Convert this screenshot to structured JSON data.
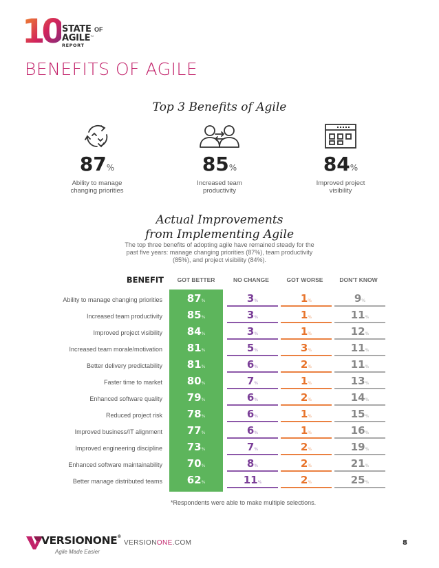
{
  "header": {
    "logo_number": "10",
    "logo_state": "STATE",
    "logo_of": "OF",
    "logo_agile": "AGILE",
    "logo_tm": "™",
    "logo_report": "REPORT",
    "page_title": "BENEFITS OF AGILE"
  },
  "top_benefits": {
    "heading": "Top 3 Benefits of Agile",
    "items": [
      {
        "value": "87",
        "unit": "%",
        "label_line1": "Ability to manage",
        "label_line2": "changing priorities",
        "icon": "cycle-arrows-icon"
      },
      {
        "value": "85",
        "unit": "%",
        "label_line1": "Increased team",
        "label_line2": "productivity",
        "icon": "team-exchange-icon"
      },
      {
        "value": "84",
        "unit": "%",
        "label_line1": "Improved project",
        "label_line2": "visibility",
        "icon": "project-window-icon"
      }
    ]
  },
  "improvements": {
    "heading_line1": "Actual Improvements",
    "heading_line2": "from Implementing Agile",
    "intro_line1": "The top three benefits of adopting agile have remained steady for the",
    "intro_line2": "past five years: manage changing priorities (87%), team productivity",
    "intro_line3": "(85%), and project visibility (84%).",
    "col_benefit": "BENEFIT",
    "col_better": "GOT BETTER",
    "col_no_change": "NO CHANGE",
    "col_worse": "GOT WORSE",
    "col_dont_know": "DON'T KNOW",
    "pct_symbol": "%",
    "rows": [
      {
        "label": "Ability to manage changing priorities",
        "better": "87",
        "no_change": "3",
        "worse": "1",
        "dont_know": "9"
      },
      {
        "label": "Increased team productivity",
        "better": "85",
        "no_change": "3",
        "worse": "1",
        "dont_know": "11"
      },
      {
        "label": "Improved project visibility",
        "better": "84",
        "no_change": "3",
        "worse": "1",
        "dont_know": "12"
      },
      {
        "label": "Increased team morale/motivation",
        "better": "81",
        "no_change": "5",
        "worse": "3",
        "dont_know": "11"
      },
      {
        "label": "Better delivery predictability",
        "better": "81",
        "no_change": "6",
        "worse": "2",
        "dont_know": "11"
      },
      {
        "label": "Faster time to market",
        "better": "80",
        "no_change": "7",
        "worse": "1",
        "dont_know": "13"
      },
      {
        "label": "Enhanced software quality",
        "better": "79",
        "no_change": "6",
        "worse": "2",
        "dont_know": "14"
      },
      {
        "label": "Reduced project risk",
        "better": "78",
        "no_change": "6",
        "worse": "1",
        "dont_know": "15"
      },
      {
        "label": "Improved business/IT alignment",
        "better": "77",
        "no_change": "6",
        "worse": "1",
        "dont_know": "16"
      },
      {
        "label": "Improved engineering discipline",
        "better": "73",
        "no_change": "7",
        "worse": "2",
        "dont_know": "19"
      },
      {
        "label": "Enhanced software maintainability",
        "better": "70",
        "no_change": "8",
        "worse": "2",
        "dont_know": "21"
      },
      {
        "label": "Better manage distributed teams",
        "better": "62",
        "no_change": "11",
        "worse": "2",
        "dont_know": "25"
      }
    ],
    "footnote": "*Respondents were able to make multiple selections."
  },
  "footer": {
    "brand": "VERSIONONE",
    "brand_tm": "®",
    "tagline": "Agile Made Easier",
    "site_prefix": "VERSION",
    "site_accent": "ONE",
    "site_suffix": ".COM",
    "page_number": "8"
  },
  "colors": {
    "title": "#c2226a",
    "better": "#5db55c",
    "no_change": "#7b3f98",
    "worse": "#e8742c",
    "dont_know": "#888888"
  }
}
